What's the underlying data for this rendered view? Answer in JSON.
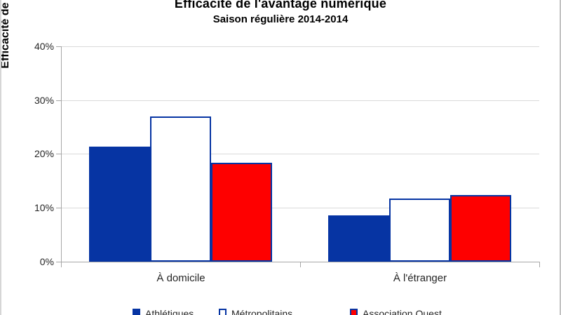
{
  "chart_data": {
    "type": "bar",
    "title": "Efficacité de l'avantage numérique",
    "subtitle": "Saison régulière 2014-2014",
    "categories": [
      "À domicile",
      "À l'étranger"
    ],
    "series": [
      {
        "name": "Athlétiques",
        "values": [
          21.4,
          8.6
        ],
        "fill": "#0634a3",
        "border": "#0634a3"
      },
      {
        "name": "Métropolitains",
        "values": [
          27.0,
          11.7
        ],
        "fill": "#ffffff",
        "border": "#0634a3"
      },
      {
        "name": "Association Ouest",
        "values": [
          18.4,
          12.4
        ],
        "fill": "#fe0000",
        "border": "#0634a3"
      }
    ],
    "xlabel": "",
    "ylabel": "Efficacité de l'avantage numérique",
    "ylim": [
      0,
      40
    ],
    "yticks": [
      "40%",
      "30%",
      "20%",
      "10%",
      "0%"
    ],
    "grid": true,
    "legend_position": "bottom"
  },
  "colors": {
    "bar_blue": "#0634a3",
    "bar_white": "#ffffff",
    "bar_red": "#fe0000",
    "bar_border": "#0634a3",
    "gridline": "#d9d9d9",
    "axis": "#a6a6a6",
    "text": "#262626"
  }
}
